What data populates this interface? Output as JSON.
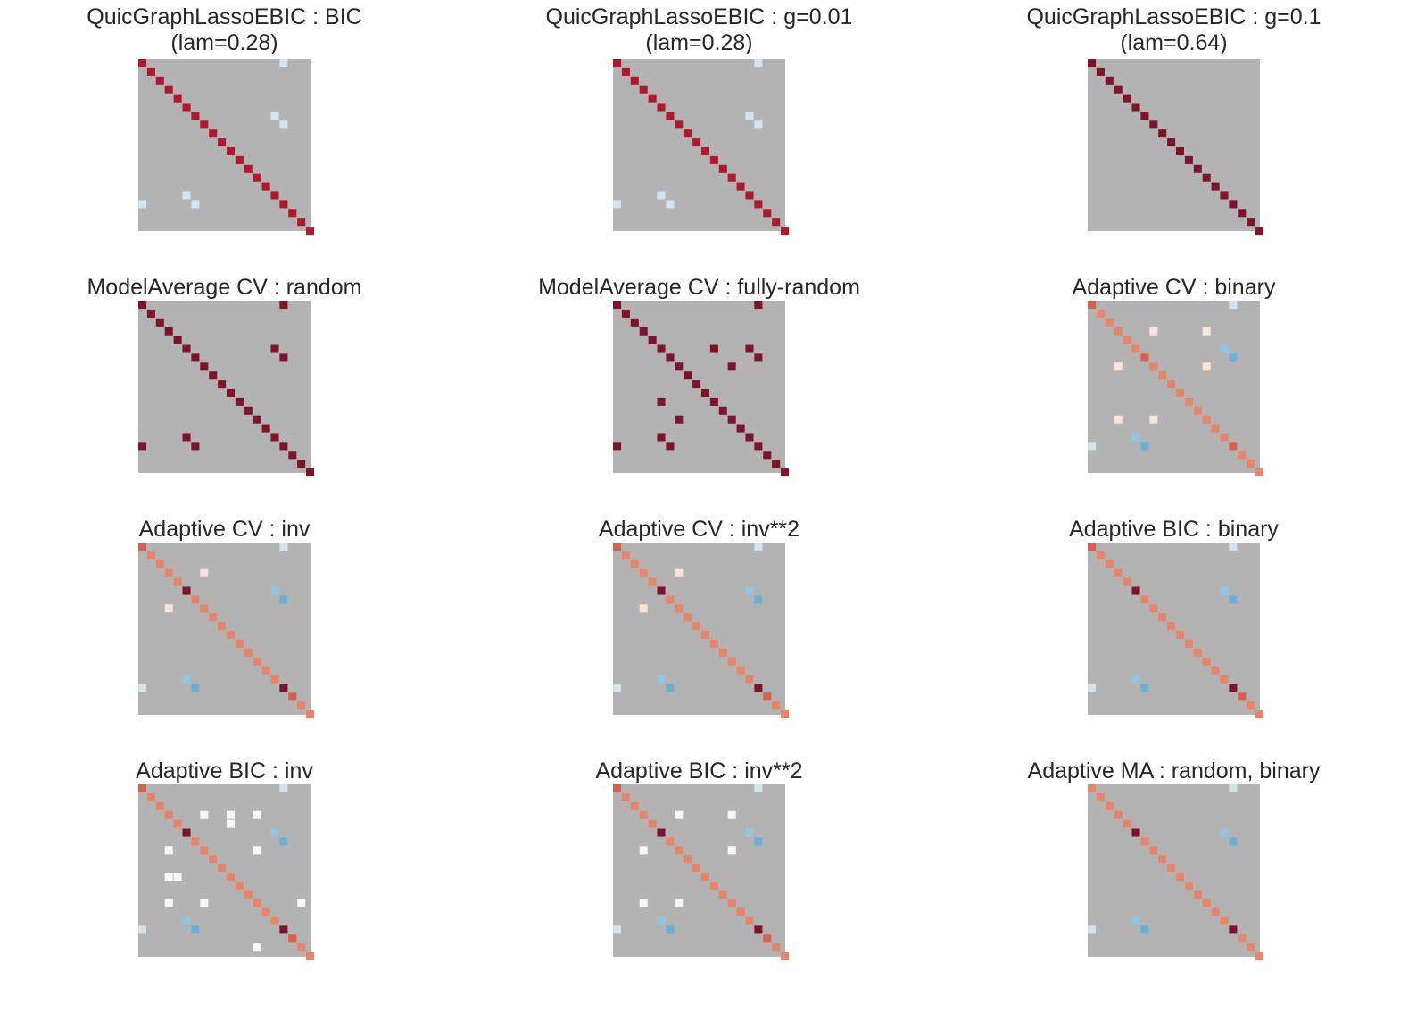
{
  "colors": {
    "background": "#b3b3b3",
    "diag_dark": "#7f1327",
    "diag_med": "#b2182b",
    "diag_red": "#d6604d",
    "diag_salmon": "#e8846a",
    "light_blue": "#d1e5f0",
    "blue": "#92c5de",
    "steel_blue": "#6baed6",
    "pale_peach": "#fbe3d6",
    "white": "#f7f7f7"
  },
  "chart_data": [
    {
      "type": "heatmap",
      "title": "QuicGraphLassoEBIC : BIC",
      "subtitle": "(lam=0.28)",
      "size": 20,
      "diagonal": "diag_med",
      "diagonal_overrides": [],
      "cells": [
        [
          0,
          16,
          "light_blue"
        ],
        [
          6,
          15,
          "light_blue"
        ],
        [
          7,
          16,
          "light_blue"
        ],
        [
          16,
          0,
          "light_blue"
        ],
        [
          15,
          5,
          "light_blue"
        ],
        [
          16,
          6,
          "light_blue"
        ]
      ]
    },
    {
      "type": "heatmap",
      "title": "QuicGraphLassoEBIC : g=0.01",
      "subtitle": "(lam=0.28)",
      "size": 20,
      "diagonal": "diag_med",
      "diagonal_overrides": [],
      "cells": [
        [
          0,
          16,
          "light_blue"
        ],
        [
          6,
          15,
          "light_blue"
        ],
        [
          7,
          16,
          "light_blue"
        ],
        [
          16,
          0,
          "light_blue"
        ],
        [
          15,
          5,
          "light_blue"
        ],
        [
          16,
          6,
          "light_blue"
        ]
      ]
    },
    {
      "type": "heatmap",
      "title": "QuicGraphLassoEBIC : g=0.1",
      "subtitle": "(lam=0.64)",
      "size": 20,
      "diagonal": "diag_dark",
      "diagonal_overrides": [],
      "cells": []
    },
    {
      "type": "heatmap",
      "title": "ModelAverage CV : random",
      "subtitle": "",
      "size": 20,
      "diagonal": "diag_dark",
      "diagonal_overrides": [],
      "cells": [
        [
          0,
          16,
          "diag_dark"
        ],
        [
          5,
          15,
          "diag_dark"
        ],
        [
          6,
          16,
          "diag_dark"
        ],
        [
          16,
          0,
          "diag_dark"
        ],
        [
          15,
          5,
          "diag_dark"
        ],
        [
          16,
          6,
          "diag_dark"
        ]
      ]
    },
    {
      "type": "heatmap",
      "title": "ModelAverage CV : fully-random",
      "subtitle": "",
      "size": 20,
      "diagonal": "diag_dark",
      "diagonal_overrides": [],
      "cells": [
        [
          0,
          16,
          "diag_dark"
        ],
        [
          5,
          11,
          "diag_dark"
        ],
        [
          5,
          15,
          "diag_dark"
        ],
        [
          6,
          16,
          "diag_dark"
        ],
        [
          7,
          13,
          "diag_dark"
        ],
        [
          11,
          5,
          "diag_dark"
        ],
        [
          13,
          7,
          "diag_dark"
        ],
        [
          16,
          0,
          "diag_dark"
        ],
        [
          15,
          5,
          "diag_dark"
        ],
        [
          16,
          6,
          "diag_dark"
        ]
      ]
    },
    {
      "type": "heatmap",
      "title": "Adaptive CV : binary",
      "subtitle": "",
      "size": 20,
      "diagonal": "diag_salmon",
      "diagonal_overrides": [
        [
          0,
          "diag_red"
        ],
        [
          6,
          "diag_red"
        ],
        [
          16,
          "diag_red"
        ],
        [
          19,
          "diag_salmon"
        ]
      ],
      "cells": [
        [
          0,
          16,
          "light_blue"
        ],
        [
          3,
          7,
          "pale_peach"
        ],
        [
          3,
          13,
          "pale_peach"
        ],
        [
          5,
          15,
          "blue"
        ],
        [
          6,
          16,
          "steel_blue"
        ],
        [
          7,
          3,
          "pale_peach"
        ],
        [
          7,
          13,
          "pale_peach"
        ],
        [
          13,
          3,
          "pale_peach"
        ],
        [
          13,
          7,
          "pale_peach"
        ],
        [
          16,
          0,
          "light_blue"
        ],
        [
          15,
          5,
          "blue"
        ],
        [
          16,
          6,
          "steel_blue"
        ]
      ]
    },
    {
      "type": "heatmap",
      "title": "Adaptive CV : inv",
      "subtitle": "",
      "size": 20,
      "diagonal": "diag_salmon",
      "diagonal_overrides": [
        [
          0,
          "diag_red"
        ],
        [
          5,
          "diag_dark"
        ],
        [
          16,
          "diag_dark"
        ],
        [
          17,
          "diag_red"
        ]
      ],
      "cells": [
        [
          0,
          16,
          "light_blue"
        ],
        [
          3,
          7,
          "pale_peach"
        ],
        [
          5,
          15,
          "blue"
        ],
        [
          6,
          16,
          "steel_blue"
        ],
        [
          7,
          3,
          "pale_peach"
        ],
        [
          16,
          0,
          "light_blue"
        ],
        [
          15,
          5,
          "blue"
        ],
        [
          16,
          6,
          "steel_blue"
        ]
      ]
    },
    {
      "type": "heatmap",
      "title": "Adaptive CV : inv**2",
      "subtitle": "",
      "size": 20,
      "diagonal": "diag_salmon",
      "diagonal_overrides": [
        [
          0,
          "diag_red"
        ],
        [
          5,
          "diag_dark"
        ],
        [
          16,
          "diag_dark"
        ],
        [
          17,
          "diag_red"
        ]
      ],
      "cells": [
        [
          0,
          16,
          "light_blue"
        ],
        [
          3,
          7,
          "pale_peach"
        ],
        [
          5,
          15,
          "blue"
        ],
        [
          6,
          16,
          "steel_blue"
        ],
        [
          7,
          3,
          "pale_peach"
        ],
        [
          16,
          0,
          "light_blue"
        ],
        [
          15,
          5,
          "blue"
        ],
        [
          16,
          6,
          "steel_blue"
        ]
      ]
    },
    {
      "type": "heatmap",
      "title": "Adaptive BIC : binary",
      "subtitle": "",
      "size": 20,
      "diagonal": "diag_salmon",
      "diagonal_overrides": [
        [
          0,
          "diag_red"
        ],
        [
          5,
          "diag_dark"
        ],
        [
          16,
          "diag_dark"
        ],
        [
          17,
          "diag_red"
        ]
      ],
      "cells": [
        [
          0,
          16,
          "light_blue"
        ],
        [
          5,
          15,
          "blue"
        ],
        [
          6,
          16,
          "steel_blue"
        ],
        [
          16,
          0,
          "light_blue"
        ],
        [
          15,
          5,
          "blue"
        ],
        [
          16,
          6,
          "steel_blue"
        ]
      ]
    },
    {
      "type": "heatmap",
      "title": "Adaptive BIC : inv",
      "subtitle": "",
      "size": 20,
      "diagonal": "diag_salmon",
      "diagonal_overrides": [
        [
          0,
          "diag_red"
        ],
        [
          5,
          "diag_dark"
        ],
        [
          16,
          "diag_dark"
        ],
        [
          17,
          "diag_red"
        ]
      ],
      "cells": [
        [
          0,
          16,
          "light_blue"
        ],
        [
          3,
          7,
          "white"
        ],
        [
          3,
          10,
          "white"
        ],
        [
          3,
          13,
          "white"
        ],
        [
          4,
          10,
          "white"
        ],
        [
          5,
          15,
          "blue"
        ],
        [
          6,
          16,
          "steel_blue"
        ],
        [
          7,
          3,
          "white"
        ],
        [
          7,
          13,
          "white"
        ],
        [
          10,
          3,
          "white"
        ],
        [
          10,
          4,
          "white"
        ],
        [
          13,
          3,
          "white"
        ],
        [
          13,
          7,
          "white"
        ],
        [
          13,
          18,
          "white"
        ],
        [
          18,
          13,
          "white"
        ],
        [
          16,
          0,
          "light_blue"
        ],
        [
          15,
          5,
          "blue"
        ],
        [
          16,
          6,
          "steel_blue"
        ]
      ]
    },
    {
      "type": "heatmap",
      "title": "Adaptive BIC : inv**2",
      "subtitle": "",
      "size": 20,
      "diagonal": "diag_salmon",
      "diagonal_overrides": [
        [
          0,
          "diag_red"
        ],
        [
          5,
          "diag_dark"
        ],
        [
          16,
          "diag_dark"
        ],
        [
          17,
          "diag_red"
        ]
      ],
      "cells": [
        [
          0,
          16,
          "light_blue"
        ],
        [
          3,
          7,
          "white"
        ],
        [
          3,
          13,
          "white"
        ],
        [
          5,
          15,
          "blue"
        ],
        [
          6,
          16,
          "steel_blue"
        ],
        [
          7,
          3,
          "white"
        ],
        [
          7,
          13,
          "white"
        ],
        [
          13,
          3,
          "white"
        ],
        [
          13,
          7,
          "white"
        ],
        [
          16,
          0,
          "light_blue"
        ],
        [
          15,
          5,
          "blue"
        ],
        [
          16,
          6,
          "steel_blue"
        ]
      ]
    },
    {
      "type": "heatmap",
      "title": "Adaptive MA : random, binary",
      "subtitle": "",
      "size": 20,
      "diagonal": "diag_salmon",
      "diagonal_overrides": [
        [
          5,
          "diag_dark"
        ],
        [
          16,
          "diag_dark"
        ]
      ],
      "cells": [
        [
          0,
          16,
          "light_blue"
        ],
        [
          5,
          15,
          "blue"
        ],
        [
          6,
          16,
          "steel_blue"
        ],
        [
          16,
          0,
          "light_blue"
        ],
        [
          15,
          5,
          "blue"
        ],
        [
          16,
          6,
          "steel_blue"
        ]
      ]
    }
  ]
}
